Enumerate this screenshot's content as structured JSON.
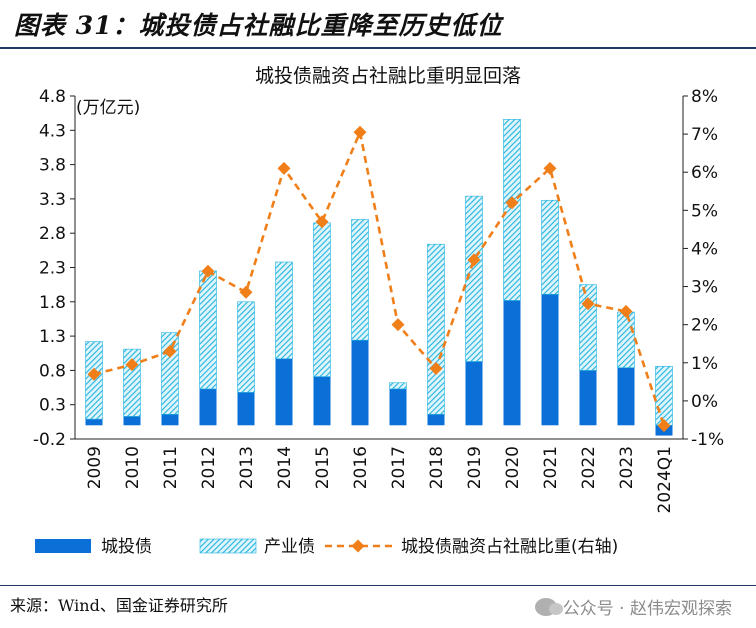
{
  "figure_title": "图表 31：城投债占社融比重降至历史低位",
  "source": "来源：Wind、国金证券研究所",
  "watermark": "公众号 · 赵伟宏观探索",
  "chart_data": {
    "type": "bar",
    "stacked": true,
    "title": "城投债融资占社融比重明显回落",
    "unit_label": "(万亿元)",
    "categories": [
      "2009",
      "2010",
      "2011",
      "2012",
      "2013",
      "2014",
      "2015",
      "2016",
      "2017",
      "2018",
      "2019",
      "2020",
      "2021",
      "2022",
      "2023",
      "2024Q1"
    ],
    "series": [
      {
        "name": "城投债",
        "axis": "left",
        "kind": "bar",
        "color": "#0a6fd6",
        "values": [
          0.09,
          0.13,
          0.16,
          0.53,
          0.48,
          0.97,
          0.71,
          1.24,
          0.53,
          0.16,
          0.93,
          1.82,
          1.91,
          0.8,
          0.84,
          -0.15
        ]
      },
      {
        "name": "产业债",
        "axis": "left",
        "kind": "bar",
        "color": "#4fc3e8",
        "pattern": "hatch",
        "values": [
          1.13,
          0.98,
          1.19,
          1.72,
          1.32,
          1.41,
          2.24,
          1.76,
          0.09,
          2.48,
          2.41,
          2.64,
          1.37,
          1.25,
          0.81,
          0.86
        ]
      },
      {
        "name": "城投债融资占社融比重(右轴)",
        "axis": "right",
        "kind": "line",
        "color": "#f07f1a",
        "values": [
          0.7,
          0.95,
          1.3,
          3.4,
          2.85,
          6.1,
          4.7,
          7.05,
          2.0,
          0.85,
          3.7,
          5.2,
          6.1,
          2.55,
          2.35,
          -0.65
        ]
      }
    ],
    "left_axis": {
      "min": -0.2,
      "max": 4.8,
      "ticks": [
        "-0.2",
        "0.3",
        "0.8",
        "1.3",
        "1.8",
        "2.3",
        "2.8",
        "3.3",
        "3.8",
        "4.3",
        "4.8"
      ]
    },
    "right_axis": {
      "min": -1,
      "max": 8,
      "ticks": [
        "-1%",
        "0%",
        "1%",
        "2%",
        "3%",
        "4%",
        "5%",
        "6%",
        "7%",
        "8%"
      ]
    },
    "grid": false,
    "legend": "bottom"
  }
}
